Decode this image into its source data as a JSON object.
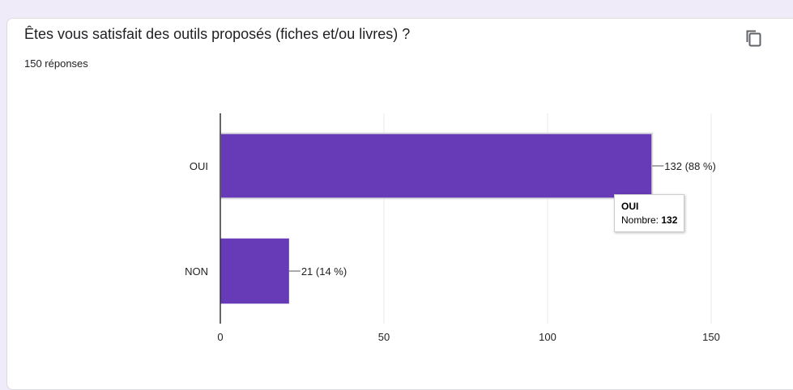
{
  "question": {
    "title": "Êtes vous satisfait des outils proposés (fiches et/ou livres) ?",
    "response_count": "150 réponses",
    "copy_icon": "copy-icon"
  },
  "colors": {
    "bar": "#673ab7",
    "axis": "#333333",
    "grid": "#e8e8e8",
    "text": "#222222"
  },
  "chart_data": {
    "type": "bar",
    "orientation": "horizontal",
    "categories": [
      "OUI",
      "NON"
    ],
    "values": [
      132,
      21
    ],
    "data_labels": [
      "132 (88 %)",
      "21 (14 %)"
    ],
    "xlim": [
      0,
      150
    ],
    "xticks": [
      0,
      50,
      100,
      150
    ],
    "grid": true,
    "title": "",
    "xlabel": "",
    "ylabel": ""
  },
  "tooltip": {
    "category": "OUI",
    "metric_label": "Nombre: ",
    "metric_value": "132"
  }
}
